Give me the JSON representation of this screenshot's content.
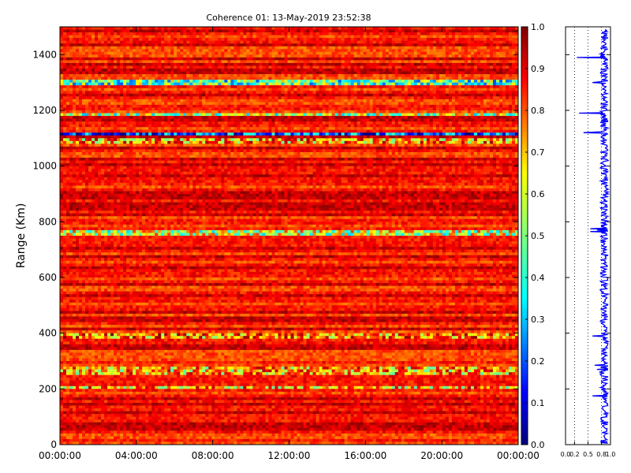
{
  "chart_data": [
    {
      "type": "heatmap",
      "title": "Coherence 01: 13-May-2019 23:52:38",
      "xlabel": "",
      "ylabel": "Range (Km)",
      "x_tick_labels": [
        "00:00:00",
        "04:00:00",
        "08:00:00",
        "12:00:00",
        "16:00:00",
        "20:00:00",
        "00:00:00"
      ],
      "y_ticks": [
        0,
        200,
        400,
        600,
        800,
        1000,
        1200,
        1400
      ],
      "ylim": [
        0,
        1500
      ],
      "colorbar": {
        "colormap": "jet",
        "range": [
          0.0,
          1.0
        ],
        "ticks": [
          "0.0",
          "0.1",
          "0.2",
          "0.3",
          "0.4",
          "0.5",
          "0.6",
          "0.7",
          "0.8",
          "0.9",
          "1.0"
        ]
      },
      "grid": false,
      "bands": [
        {
          "range_km": [
            1305,
            1295
          ],
          "level": 0.45
        },
        {
          "range_km": [
            1190,
            1178
          ],
          "level": 0.55
        },
        {
          "range_km": [
            1120,
            1110
          ],
          "level": 0.2
        },
        {
          "range_km": [
            1100,
            1085
          ],
          "level": 0.72
        },
        {
          "range_km": [
            765,
            755
          ],
          "level": 0.58
        },
        {
          "range_km": [
            280,
            255
          ],
          "level": 0.7
        },
        {
          "range_km": [
            395,
            385
          ],
          "level": 0.75
        },
        {
          "range_km": [
            210,
            200
          ],
          "level": 0.7
        }
      ]
    },
    {
      "type": "line",
      "xlim": [
        0.0,
        1.0
      ],
      "x_tick_labels": [
        "0.0",
        "0.2",
        "0.5",
        "0.8",
        "1.0"
      ],
      "ylim": [
        0,
        1500
      ],
      "line_color": "#0000ff",
      "grid_x": true,
      "profile": [
        [
          1490,
          0.88
        ],
        [
          1475,
          0.92
        ],
        [
          1460,
          0.95
        ],
        [
          1440,
          0.9
        ],
        [
          1420,
          0.94
        ],
        [
          1400,
          0.88
        ],
        [
          1390,
          0.25
        ],
        [
          1380,
          0.9
        ],
        [
          1360,
          0.93
        ],
        [
          1340,
          0.88
        ],
        [
          1320,
          0.92
        ],
        [
          1300,
          0.6
        ],
        [
          1285,
          0.9
        ],
        [
          1260,
          0.93
        ],
        [
          1240,
          0.87
        ],
        [
          1220,
          0.94
        ],
        [
          1200,
          0.9
        ],
        [
          1190,
          0.3
        ],
        [
          1180,
          0.85
        ],
        [
          1170,
          0.92
        ],
        [
          1160,
          0.95
        ],
        [
          1140,
          0.88
        ],
        [
          1120,
          0.4
        ],
        [
          1110,
          0.9
        ],
        [
          1090,
          0.8
        ],
        [
          1060,
          0.93
        ],
        [
          1040,
          0.88
        ],
        [
          1020,
          0.95
        ],
        [
          1000,
          0.9
        ],
        [
          980,
          0.94
        ],
        [
          960,
          0.87
        ],
        [
          940,
          0.93
        ],
        [
          920,
          0.9
        ],
        [
          900,
          0.95
        ],
        [
          880,
          0.88
        ],
        [
          860,
          0.92
        ],
        [
          840,
          0.9
        ],
        [
          820,
          0.94
        ],
        [
          800,
          0.88
        ],
        [
          790,
          0.93
        ],
        [
          775,
          0.55
        ],
        [
          770,
          0.7
        ],
        [
          765,
          0.55
        ],
        [
          755,
          0.9
        ],
        [
          740,
          0.94
        ],
        [
          720,
          0.87
        ],
        [
          700,
          0.92
        ],
        [
          680,
          0.95
        ],
        [
          660,
          0.88
        ],
        [
          640,
          0.93
        ],
        [
          620,
          0.9
        ],
        [
          600,
          0.94
        ],
        [
          580,
          0.88
        ],
        [
          560,
          0.92
        ],
        [
          540,
          0.95
        ],
        [
          520,
          0.87
        ],
        [
          500,
          0.93
        ],
        [
          480,
          0.9
        ],
        [
          460,
          0.94
        ],
        [
          440,
          0.88
        ],
        [
          420,
          0.92
        ],
        [
          400,
          0.85
        ],
        [
          390,
          0.6
        ],
        [
          380,
          0.9
        ],
        [
          360,
          0.94
        ],
        [
          340,
          0.88
        ],
        [
          320,
          0.92
        ],
        [
          300,
          0.85
        ],
        [
          285,
          0.65
        ],
        [
          270,
          0.7
        ],
        [
          260,
          0.75
        ],
        [
          240,
          0.88
        ],
        [
          220,
          0.92
        ],
        [
          205,
          0.78
        ],
        [
          190,
          0.9
        ],
        [
          175,
          0.6
        ],
        [
          160,
          0.9
        ],
        [
          140,
          0.94
        ],
        [
          120,
          0.88
        ],
        [
          100,
          0.92
        ],
        [
          80,
          0.95
        ],
        [
          60,
          0.87
        ],
        [
          40,
          0.93
        ],
        [
          20,
          0.9
        ],
        [
          5,
          0.94
        ]
      ]
    }
  ]
}
